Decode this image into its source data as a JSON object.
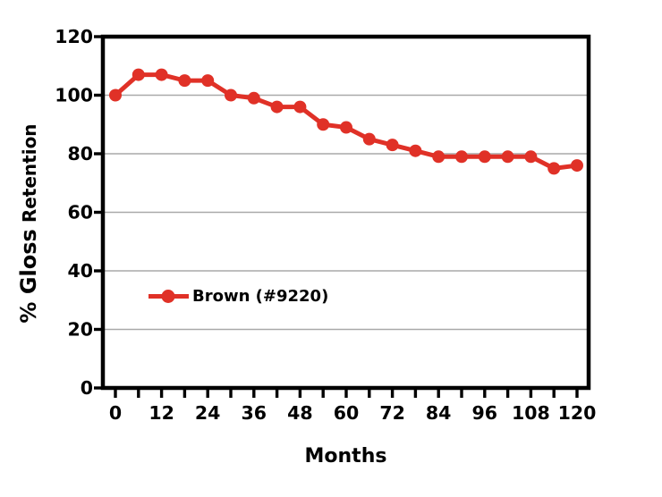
{
  "chart_data": {
    "type": "line",
    "title": "",
    "xlabel": "Months",
    "ylabel": "% Gloss Retention",
    "ylabel_parts": [
      "% Gloss",
      "Retention"
    ],
    "x": [
      0,
      6,
      12,
      18,
      24,
      30,
      36,
      42,
      48,
      54,
      60,
      66,
      72,
      78,
      84,
      90,
      96,
      102,
      108,
      114,
      120
    ],
    "series": [
      {
        "name": "Brown (#9220)",
        "color": "#e03127",
        "values": [
          100,
          107,
          107,
          105,
          105,
          100,
          99,
          96,
          96,
          90,
          89,
          85,
          83,
          81,
          79,
          79,
          79,
          79,
          79,
          75,
          76
        ]
      }
    ],
    "xlim": [
      0,
      120
    ],
    "ylim": [
      0,
      120
    ],
    "x_tick_step": 6,
    "x_tick_labels": [
      "0",
      "12",
      "24",
      "36",
      "48",
      "60",
      "72",
      "84",
      "96",
      "108",
      "120"
    ],
    "y_tick_labels": [
      "0",
      "20",
      "40",
      "60",
      "80",
      "100",
      "120"
    ],
    "gridline_values": [
      20,
      40,
      60,
      80,
      100
    ],
    "grid_on": true,
    "grid_color": "#a9a9a9",
    "axis_color": "#000000",
    "text_color": "#000000",
    "legend_position": "inside-left-lower"
  }
}
